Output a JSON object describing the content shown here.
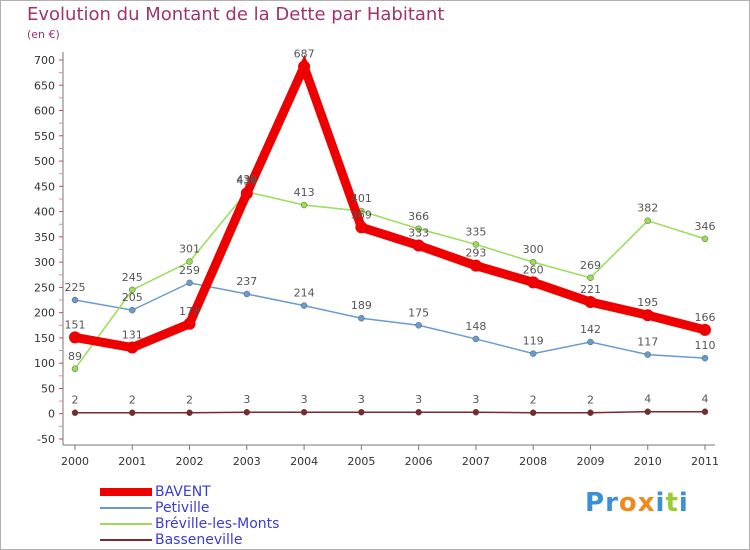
{
  "chart_data": {
    "type": "line",
    "title": "Evolution du Montant de la Dette par Habitant",
    "ylabel": "(en €)",
    "xlabel": "",
    "categories": [
      "2000",
      "2001",
      "2002",
      "2003",
      "2004",
      "2005",
      "2006",
      "2007",
      "2008",
      "2009",
      "2010",
      "2011"
    ],
    "ylim": [
      -50,
      700
    ],
    "yticks": [
      -50,
      0,
      50,
      100,
      150,
      200,
      250,
      300,
      350,
      400,
      450,
      500,
      550,
      600,
      650,
      700
    ],
    "grid": false,
    "legend_position": "bottom-left",
    "series": [
      {
        "name": "BAVENT",
        "color": "#ee0000",
        "values": [
          151,
          131,
          178,
          436,
          687,
          369,
          333,
          293,
          260,
          221,
          195,
          166
        ]
      },
      {
        "name": "Petiville",
        "color": "#6a9bd0",
        "values": [
          225,
          205,
          259,
          237,
          214,
          189,
          175,
          148,
          119,
          142,
          117,
          110
        ]
      },
      {
        "name": "Bréville-les-Monts",
        "color": "#99dd55",
        "values": [
          89,
          245,
          301,
          439,
          413,
          401,
          366,
          335,
          300,
          269,
          382,
          346
        ]
      },
      {
        "name": "Basseneville",
        "color": "#7a2a2a",
        "values": [
          2,
          2,
          2,
          3,
          3,
          3,
          3,
          3,
          2,
          2,
          4,
          4
        ]
      }
    ]
  },
  "brand": {
    "letters": [
      "P",
      "r",
      "o",
      "x",
      "i",
      "t",
      "i"
    ],
    "colors": [
      "#3a8fd9",
      "#3a8fd9",
      "#ee8a1e",
      "#ee8a1e",
      "#3a8fd9",
      "#99cc33",
      "#3a8fd9"
    ]
  }
}
